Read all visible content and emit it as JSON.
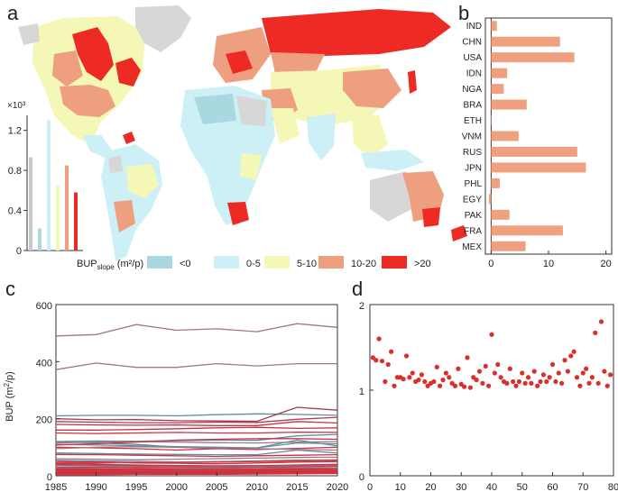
{
  "colors": {
    "neg": "#a9d8e0",
    "c0_5": "#cdf0f6",
    "c5_10": "#f5f7b6",
    "c10_20": "#ee9f7f",
    "gt20": "#ee2a24",
    "land_gray": "#d7d7d7",
    "bar_b": "#eea07f",
    "dot_d": "#d9302c"
  },
  "panel_a": {
    "letter": "a",
    "inset": {
      "ylabel_exp": "×10³",
      "yticks": [
        "0",
        "0.4",
        "0.8",
        "1.2"
      ],
      "ylim": [
        0,
        1.35
      ],
      "values": [
        0.93,
        0.22,
        1.3,
        0.65,
        0.85,
        0.58
      ],
      "colors": [
        "#c9c9c9",
        "#a9d8e0",
        "#cdf0f6",
        "#f5f7b6",
        "#ee9f7f",
        "#ee2a24"
      ]
    },
    "legend": {
      "title_main": "BUP",
      "title_sub": "slope",
      "title_unit": " (m²/p)",
      "items": [
        {
          "label": "<0",
          "color": "#a9d8e0"
        },
        {
          "label": "0-5",
          "color": "#cdf0f6"
        },
        {
          "label": "5-10",
          "color": "#f5f7b6"
        },
        {
          "label": "10-20",
          "color": "#ee9f7f"
        },
        {
          "label": ">20",
          "color": "#ee2a24"
        }
      ]
    }
  },
  "chart_data": [
    {
      "panel": "b",
      "type": "bar",
      "orientation": "horizontal",
      "categories": [
        "IND",
        "CHN",
        "USA",
        "IDN",
        "NGA",
        "BRA",
        "ETH",
        "VNM",
        "RUS",
        "JPN",
        "PHL",
        "EGY",
        "PAK",
        "FRA",
        "MEX"
      ],
      "values": [
        1.0,
        12.0,
        14.5,
        2.8,
        2.2,
        6.2,
        0.0,
        4.8,
        15.0,
        16.5,
        1.5,
        -0.4,
        3.2,
        12.5,
        6.0
      ],
      "xticks": [
        "0",
        "10",
        "20"
      ],
      "xlim": [
        -1,
        21
      ]
    },
    {
      "panel": "c",
      "type": "line",
      "ylabel_main": "BUP (m",
      "ylabel_sup": "2",
      "ylabel_tail": "/p)",
      "x": [
        1985,
        1990,
        1995,
        2000,
        2005,
        2010,
        2015,
        2020
      ],
      "xticks": [
        "1985",
        "1990",
        "1995",
        "2000",
        "2005",
        "2010",
        "2015",
        "2020"
      ],
      "yticks": [
        "0",
        "200",
        "400",
        "600"
      ],
      "ylim": [
        0,
        600
      ],
      "series": [
        {
          "values": [
            490,
            495,
            530,
            510,
            515,
            505,
            533,
            520
          ],
          "color": "#a07688"
        },
        {
          "values": [
            372,
            395,
            380,
            380,
            393,
            385,
            393,
            393
          ],
          "color": "#a07688"
        },
        {
          "values": [
            210,
            212,
            212,
            210,
            214,
            217,
            215,
            212
          ],
          "color": "#5b8f9e"
        },
        {
          "values": [
            200,
            196,
            197,
            193,
            192,
            191,
            240,
            230
          ],
          "color": "#a8364c"
        },
        {
          "values": [
            190,
            188,
            186,
            186,
            188,
            187,
            198,
            205
          ],
          "color": "#b23a52"
        },
        {
          "values": [
            180,
            178,
            177,
            178,
            176,
            176,
            190,
            185
          ],
          "color": "#c53444"
        },
        {
          "values": [
            160,
            160,
            162,
            165,
            168,
            170,
            166,
            168
          ],
          "color": "#c53444"
        },
        {
          "values": [
            150,
            148,
            150,
            152,
            150,
            150,
            153,
            152
          ],
          "color": "#cf3040"
        },
        {
          "values": [
            120,
            122,
            121,
            123,
            125,
            124,
            140,
            145
          ],
          "color": "#5b8f9e"
        },
        {
          "values": [
            118,
            115,
            110,
            100,
            95,
            98,
            115,
            112
          ],
          "color": "#5b8f9e"
        },
        {
          "values": [
            115,
            118,
            120,
            118,
            116,
            115,
            118,
            120
          ],
          "color": "#a07688"
        },
        {
          "values": [
            110,
            108,
            105,
            102,
            100,
            98,
            125,
            105
          ],
          "color": "#5b8f9e"
        },
        {
          "values": [
            108,
            112,
            118,
            125,
            128,
            130,
            130,
            128
          ],
          "color": "#c53444"
        },
        {
          "values": [
            100,
            98,
            95,
            90,
            95,
            92,
            96,
            100
          ],
          "color": "#cf3040"
        },
        {
          "values": [
            95,
            100,
            102,
            100,
            98,
            95,
            92,
            90
          ],
          "color": "#a07688"
        },
        {
          "values": [
            80,
            78,
            76,
            75,
            74,
            74,
            90,
            80
          ],
          "color": "#5b8f9e"
        },
        {
          "values": [
            75,
            74,
            72,
            70,
            68,
            70,
            72,
            74
          ],
          "color": "#cf3040"
        },
        {
          "values": [
            60,
            58,
            56,
            58,
            60,
            62,
            64,
            65
          ],
          "color": "#a07688"
        },
        {
          "values": [
            55,
            52,
            50,
            48,
            50,
            52,
            55,
            56
          ],
          "color": "#5b8f9e"
        },
        {
          "values": [
            50,
            48,
            45,
            44,
            42,
            45,
            48,
            50
          ],
          "color": "#cf3040"
        },
        {
          "values": [
            45,
            45,
            46,
            47,
            48,
            50,
            52,
            54
          ],
          "color": "#e0323a"
        },
        {
          "values": [
            42,
            40,
            38,
            36,
            35,
            36,
            38,
            40
          ],
          "color": "#b23a52"
        },
        {
          "values": [
            38,
            36,
            35,
            34,
            33,
            32,
            34,
            36
          ],
          "color": "#cf3040"
        },
        {
          "values": [
            35,
            34,
            32,
            30,
            31,
            32,
            33,
            34
          ],
          "color": "#a07688"
        },
        {
          "values": [
            30,
            30,
            29,
            28,
            28,
            30,
            31,
            33
          ],
          "color": "#e0323a"
        },
        {
          "values": [
            28,
            26,
            25,
            24,
            25,
            26,
            27,
            28
          ],
          "color": "#5b8f9e"
        },
        {
          "values": [
            25,
            24,
            23,
            22,
            22,
            23,
            24,
            25
          ],
          "color": "#cf3040"
        },
        {
          "values": [
            22,
            21,
            20,
            20,
            21,
            22,
            22,
            23
          ],
          "color": "#e0323a"
        },
        {
          "values": [
            20,
            19,
            18,
            18,
            19,
            20,
            21,
            22
          ],
          "color": "#b23a52"
        },
        {
          "values": [
            18,
            17,
            16,
            16,
            17,
            18,
            19,
            20
          ],
          "color": "#e0323a"
        },
        {
          "values": [
            15,
            15,
            14,
            14,
            15,
            16,
            17,
            18
          ],
          "color": "#cf3040"
        },
        {
          "values": [
            12,
            12,
            12,
            13,
            14,
            15,
            16,
            17
          ],
          "color": "#e0323a"
        },
        {
          "values": [
            10,
            10,
            10,
            10,
            11,
            12,
            13,
            14
          ],
          "color": "#a8364c"
        },
        {
          "values": [
            8,
            8,
            8,
            9,
            9,
            10,
            11,
            12
          ],
          "color": "#e0323a"
        },
        {
          "values": [
            6,
            6,
            6,
            7,
            7,
            8,
            9,
            10
          ],
          "color": "#cf3040"
        },
        {
          "values": [
            4,
            4,
            5,
            5,
            5,
            6,
            7,
            8
          ],
          "color": "#e0323a"
        }
      ]
    },
    {
      "panel": "d",
      "type": "scatter",
      "xticks": [
        "0",
        "10",
        "20",
        "30",
        "40",
        "50",
        "60",
        "70",
        "80"
      ],
      "yticks": [
        "0",
        "1",
        "2"
      ],
      "xlim": [
        0,
        80
      ],
      "ylim": [
        0,
        2
      ],
      "x": [
        1,
        2,
        3,
        4,
        5,
        6,
        7,
        8,
        9,
        10,
        11,
        12,
        13,
        14,
        15,
        16,
        17,
        18,
        19,
        20,
        21,
        22,
        23,
        24,
        25,
        26,
        27,
        28,
        29,
        30,
        31,
        32,
        33,
        34,
        35,
        36,
        37,
        38,
        39,
        40,
        41,
        42,
        43,
        44,
        45,
        46,
        47,
        48,
        49,
        50,
        51,
        52,
        53,
        54,
        55,
        56,
        57,
        58,
        59,
        60,
        61,
        62,
        63,
        64,
        65,
        66,
        67,
        68,
        69,
        70,
        71,
        72,
        73,
        74,
        75,
        76,
        77,
        78,
        79
      ],
      "y": [
        1.38,
        1.35,
        1.6,
        1.34,
        1.1,
        1.3,
        1.45,
        1.05,
        1.15,
        1.15,
        1.13,
        1.4,
        1.15,
        1.2,
        1.1,
        1.12,
        1.18,
        1.1,
        1.05,
        1.08,
        1.1,
        1.27,
        1.05,
        1.12,
        1.2,
        1.15,
        1.08,
        1.05,
        1.25,
        1.07,
        1.04,
        1.38,
        1.03,
        1.15,
        1.12,
        1.22,
        1.08,
        1.28,
        1.05,
        1.65,
        1.2,
        1.3,
        1.15,
        1.1,
        1.08,
        1.25,
        1.1,
        1.05,
        1.1,
        1.2,
        1.08,
        1.15,
        1.08,
        1.22,
        1.05,
        1.1,
        1.18,
        1.1,
        1.15,
        1.3,
        1.1,
        1.2,
        1.08,
        1.35,
        1.22,
        1.4,
        1.45,
        1.15,
        1.05,
        1.2,
        1.25,
        1.08,
        1.15,
        1.67,
        1.08,
        1.8,
        1.22,
        1.05,
        1.18
      ]
    }
  ]
}
